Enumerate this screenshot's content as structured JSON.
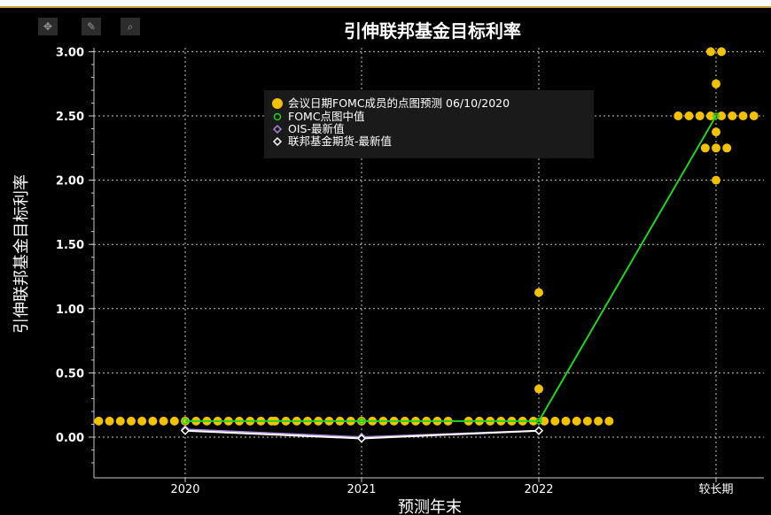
{
  "toolbar": {
    "move_icon": "crosshair-move-icon",
    "edit_icon": "pencil-icon",
    "zoom_icon": "magnifier-icon"
  },
  "colors": {
    "dots": "#f2c200",
    "median": "#22d422",
    "ois": "#a98ad8",
    "futures": "#ffffff",
    "grid": "#c8c8c8",
    "text": "#ffffff"
  },
  "chart_data": {
    "type": "scatter",
    "title": "引伸联邦基金目标利率",
    "xlabel": "预测年末",
    "ylabel": "引伸联邦基金目标利率",
    "categories": [
      "2020",
      "2021",
      "2022",
      "较长期"
    ],
    "ylim": [
      -0.25,
      3.1
    ],
    "yticks": [
      "0.00",
      "0.50",
      "1.00",
      "1.50",
      "2.00",
      "2.50",
      "3.00"
    ],
    "grid": true,
    "legend_position": "top-center",
    "series": [
      {
        "name": "会议日期FOMC成员的点图预测 06/10/2020",
        "type": "dotplot",
        "groups": [
          {
            "category": "2020",
            "dots": [
              {
                "value": 0.125,
                "count": 17
              }
            ]
          },
          {
            "category": "2021",
            "dots": [
              {
                "value": 0.125,
                "count": 17
              }
            ]
          },
          {
            "category": "2022",
            "dots": [
              {
                "value": 1.125,
                "count": 1
              },
              {
                "value": 0.375,
                "count": 1
              },
              {
                "value": 0.125,
                "count": 14
              }
            ]
          },
          {
            "category": "较长期",
            "dots": [
              {
                "value": 3.0,
                "count": 2
              },
              {
                "value": 2.75,
                "count": 1
              },
              {
                "value": 2.5,
                "count": 8
              },
              {
                "value": 2.375,
                "count": 1
              },
              {
                "value": 2.25,
                "count": 3
              },
              {
                "value": 2.0,
                "count": 1
              }
            ]
          }
        ]
      },
      {
        "name": "FOMC点图中值",
        "type": "line",
        "values": [
          0.125,
          0.125,
          0.125,
          2.5
        ]
      },
      {
        "name": "OIS-最新值",
        "type": "line",
        "values": [
          0.06,
          0.0,
          0.05,
          null
        ]
      },
      {
        "name": "联邦基金期货-最新值",
        "type": "line",
        "values": [
          0.05,
          -0.01,
          0.05,
          null
        ]
      }
    ]
  }
}
